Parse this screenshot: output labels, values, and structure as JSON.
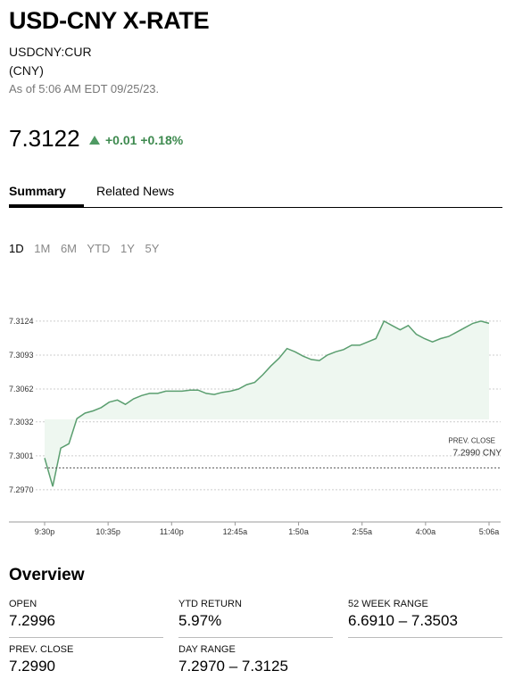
{
  "header": {
    "title": "USD-CNY X-RATE",
    "ticker": "USDCNY:CUR",
    "currency": "(CNY)",
    "as_of": "As of 5:06 AM EDT 09/25/23.",
    "price": "7.3122",
    "change": "+0.01 +0.18%",
    "change_color": "#3e8a4f"
  },
  "tabs": [
    {
      "label": "Summary",
      "active": true
    },
    {
      "label": "Related News",
      "active": false
    }
  ],
  "ranges": [
    "1D",
    "1M",
    "6M",
    "YTD",
    "1Y",
    "5Y"
  ],
  "selected_range": "1D",
  "chart_data": {
    "type": "area",
    "y_ticks": [
      "7.3124",
      "7.3093",
      "7.3062",
      "7.3032",
      "7.3001",
      "7.2970"
    ],
    "x_ticks": [
      "9:30p",
      "10:35p",
      "11:40p",
      "12:45a",
      "1:50a",
      "2:55a",
      "4:00a",
      "5:06a"
    ],
    "prev_close_label": "PREV. CLOSE",
    "prev_close_value": "7.2990 CNY",
    "line_color": "#5a9e6f",
    "series": [
      {
        "x": [
          "9:30p",
          "9:33p",
          "9:37p",
          "9:42p",
          "9:47p",
          "9:54p",
          "10:00p",
          "10:08p",
          "10:16p",
          "10:24p",
          "10:30p",
          "10:37p",
          "10:45p",
          "10:55p",
          "11:05p",
          "11:15p",
          "11:25p",
          "11:35p",
          "11:45p",
          "11:55p",
          "12:05a",
          "12:15a",
          "12:25a",
          "12:35a",
          "12:45a",
          "12:55a",
          "1:05a",
          "1:15a",
          "1:25a",
          "1:35a",
          "1:45a",
          "1:50a",
          "1:55a",
          "2:05a",
          "2:15a",
          "2:25a",
          "2:35a",
          "2:45a",
          "2:55a",
          "3:05a",
          "3:15a",
          "3:20a",
          "3:25a",
          "3:35a",
          "3:45a",
          "3:50a",
          "3:55a",
          "4:00a",
          "4:10a",
          "4:20a",
          "4:30a",
          "4:40a",
          "4:45a",
          "4:50a",
          "5:00a",
          "5:06a"
        ],
        "y": [
          7.2999,
          7.2973,
          7.3008,
          7.3012,
          7.3035,
          7.304,
          7.3042,
          7.3045,
          7.305,
          7.3052,
          7.3048,
          7.3053,
          7.3056,
          7.3058,
          7.3058,
          7.306,
          7.306,
          7.306,
          7.3061,
          7.3061,
          7.3058,
          7.3057,
          7.3059,
          7.306,
          7.3062,
          7.3066,
          7.3068,
          7.3075,
          7.3083,
          7.309,
          7.3099,
          7.3096,
          7.3092,
          7.3089,
          7.3088,
          7.3093,
          7.3096,
          7.3098,
          7.3102,
          7.3102,
          7.3105,
          7.3108,
          7.3124,
          7.312,
          7.3116,
          7.312,
          7.3112,
          7.3108,
          7.3105,
          7.3108,
          7.311,
          7.3114,
          7.3118,
          7.3122,
          7.3124,
          7.3122
        ]
      }
    ],
    "ylim": [
      7.2965,
      7.3128
    ],
    "prev_close": 7.299
  },
  "overview": {
    "title": "Overview",
    "stats": [
      {
        "label": "OPEN",
        "value": "7.2996"
      },
      {
        "label": "YTD RETURN",
        "value": "5.97%"
      },
      {
        "label": "52 WEEK RANGE",
        "value": "6.6910 – 7.3503"
      },
      {
        "label": "PREV. CLOSE",
        "value": "7.2990"
      },
      {
        "label": "DAY RANGE",
        "value": "7.2970 – 7.3125"
      }
    ]
  }
}
